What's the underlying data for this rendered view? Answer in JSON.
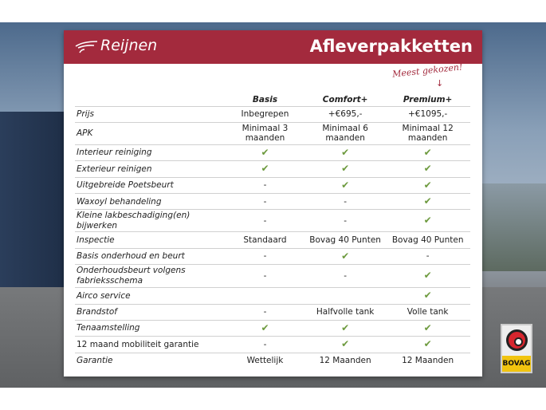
{
  "brand": "Reijnen",
  "title": "Afleverpakketten",
  "note": "Meest gekozen!",
  "columns": [
    "Basis",
    "Comfort+",
    "Premium+"
  ],
  "rows": [
    {
      "label": "Prijs",
      "italic": true,
      "values": [
        "Inbegrepen",
        "+€695,-",
        "+€1095,-"
      ]
    },
    {
      "label": "APK",
      "italic": true,
      "values": [
        "Minimaal 3 maanden",
        "Minimaal 6 maanden",
        "Minimaal 12 maanden"
      ]
    },
    {
      "label": "Interieur reiniging",
      "italic": true,
      "values": [
        "check",
        "check",
        "check"
      ]
    },
    {
      "label": "Exterieur reinigen",
      "italic": true,
      "values": [
        "check",
        "check",
        "check"
      ]
    },
    {
      "label": "Uitgebreide Poetsbeurt",
      "italic": true,
      "values": [
        "-",
        "check",
        "check"
      ]
    },
    {
      "label": "Waxoyl behandeling",
      "italic": true,
      "values": [
        "-",
        "-",
        "check"
      ]
    },
    {
      "label": "Kleine lakbeschadiging(en) bijwerken",
      "italic": true,
      "values": [
        "-",
        "-",
        "check"
      ]
    },
    {
      "label": "Inspectie",
      "italic": true,
      "values": [
        "Standaard",
        "Bovag 40 Punten",
        "Bovag 40 Punten"
      ]
    },
    {
      "label": "Basis onderhoud en beurt",
      "italic": true,
      "values": [
        "-",
        "check",
        "-"
      ]
    },
    {
      "label": "Onderhoudsbeurt volgens fabrieksschema",
      "italic": true,
      "values": [
        "-",
        "-",
        "check"
      ]
    },
    {
      "label": "Airco service",
      "italic": true,
      "values": [
        "",
        "",
        "check"
      ]
    },
    {
      "label": "Brandstof",
      "italic": true,
      "values": [
        "-",
        "Halfvolle tank",
        "Volle tank"
      ]
    },
    {
      "label": "Tenaamstelling",
      "italic": true,
      "values": [
        "check",
        "check",
        "check"
      ]
    },
    {
      "label": "12 maand mobiliteit garantie",
      "italic": false,
      "values": [
        "-",
        "check",
        "check"
      ]
    },
    {
      "label": "Garantie",
      "italic": true,
      "values": [
        "Wettelijk",
        "12 Maanden",
        "12 Maanden"
      ]
    }
  ],
  "check_symbol": "✔",
  "badge": "BOVAG",
  "colors": {
    "brand": "#a32a3d",
    "check": "#6d9a3e",
    "badge_yellow": "#f1c40f",
    "badge_red": "#d7262e"
  }
}
